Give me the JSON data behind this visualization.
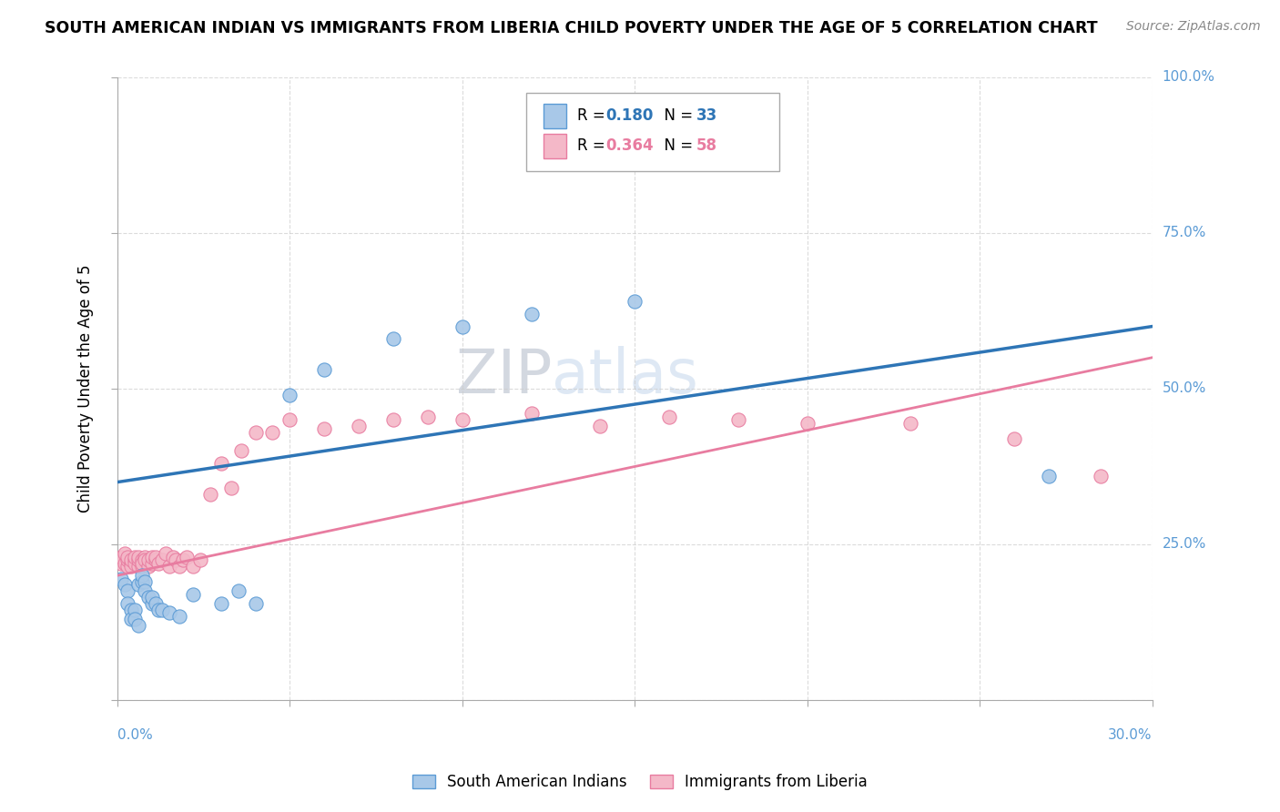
{
  "title": "SOUTH AMERICAN INDIAN VS IMMIGRANTS FROM LIBERIA CHILD POVERTY UNDER THE AGE OF 5 CORRELATION CHART",
  "source": "Source: ZipAtlas.com",
  "ylabel_label": "Child Poverty Under the Age of 5",
  "xmin": 0.0,
  "xmax": 0.3,
  "ymin": 0.0,
  "ymax": 1.0,
  "blue_R": 0.18,
  "blue_N": 33,
  "pink_R": 0.364,
  "pink_N": 58,
  "blue_label": "South American Indians",
  "pink_label": "Immigrants from Liberia",
  "blue_color": "#a8c8e8",
  "pink_color": "#f4b8c8",
  "blue_edge_color": "#5b9bd5",
  "pink_edge_color": "#e87ca0",
  "blue_line_color": "#2e75b6",
  "pink_line_color": "#e87ca0",
  "axis_label_color": "#5b9bd5",
  "watermark_color": "#d0dff0",
  "blue_line_solid": true,
  "pink_line_solid": true,
  "blue_x": [
    0.001,
    0.002,
    0.003,
    0.003,
    0.004,
    0.004,
    0.005,
    0.005,
    0.006,
    0.006,
    0.007,
    0.007,
    0.008,
    0.008,
    0.009,
    0.01,
    0.01,
    0.011,
    0.012,
    0.013,
    0.015,
    0.018,
    0.022,
    0.03,
    0.035,
    0.04,
    0.05,
    0.06,
    0.08,
    0.1,
    0.12,
    0.15,
    0.27
  ],
  "blue_y": [
    0.195,
    0.185,
    0.175,
    0.155,
    0.145,
    0.13,
    0.145,
    0.13,
    0.12,
    0.185,
    0.19,
    0.2,
    0.19,
    0.175,
    0.165,
    0.155,
    0.165,
    0.155,
    0.145,
    0.145,
    0.14,
    0.135,
    0.17,
    0.155,
    0.175,
    0.155,
    0.49,
    0.53,
    0.58,
    0.6,
    0.62,
    0.64,
    0.36
  ],
  "pink_x": [
    0.001,
    0.001,
    0.002,
    0.002,
    0.003,
    0.003,
    0.003,
    0.004,
    0.004,
    0.004,
    0.005,
    0.005,
    0.005,
    0.006,
    0.006,
    0.006,
    0.007,
    0.007,
    0.007,
    0.008,
    0.008,
    0.009,
    0.009,
    0.01,
    0.01,
    0.011,
    0.011,
    0.012,
    0.013,
    0.014,
    0.015,
    0.016,
    0.017,
    0.018,
    0.019,
    0.02,
    0.022,
    0.024,
    0.027,
    0.03,
    0.033,
    0.036,
    0.04,
    0.045,
    0.05,
    0.06,
    0.07,
    0.08,
    0.09,
    0.1,
    0.12,
    0.14,
    0.16,
    0.18,
    0.2,
    0.23,
    0.26,
    0.285
  ],
  "pink_y": [
    0.22,
    0.23,
    0.22,
    0.235,
    0.215,
    0.225,
    0.23,
    0.22,
    0.215,
    0.225,
    0.225,
    0.22,
    0.23,
    0.215,
    0.225,
    0.23,
    0.215,
    0.225,
    0.22,
    0.23,
    0.225,
    0.215,
    0.225,
    0.22,
    0.23,
    0.225,
    0.23,
    0.22,
    0.225,
    0.235,
    0.215,
    0.23,
    0.225,
    0.215,
    0.225,
    0.23,
    0.215,
    0.225,
    0.33,
    0.38,
    0.34,
    0.4,
    0.43,
    0.43,
    0.45,
    0.435,
    0.44,
    0.45,
    0.455,
    0.45,
    0.46,
    0.44,
    0.455,
    0.45,
    0.445,
    0.445,
    0.42,
    0.36
  ]
}
